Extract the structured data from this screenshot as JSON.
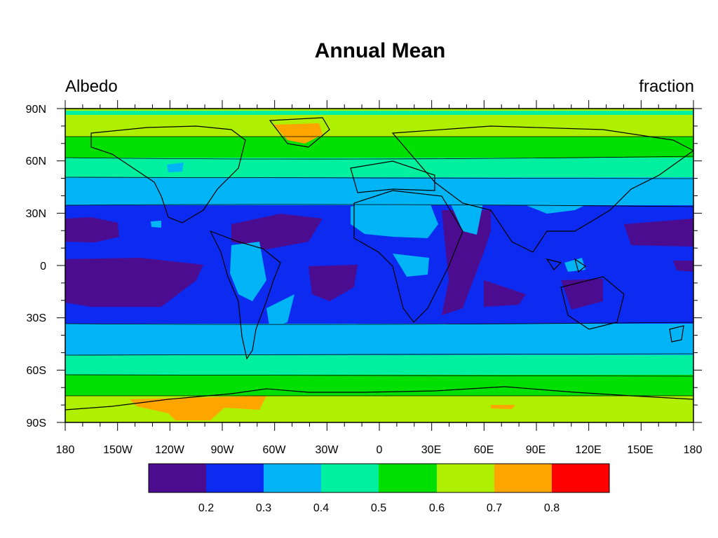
{
  "title": "Annual Mean",
  "left_string": "Albedo",
  "right_string": "fraction",
  "axes": {
    "x_ticks": [
      "180",
      "150W",
      "120W",
      "90W",
      "60W",
      "30W",
      "0",
      "30E",
      "60E",
      "90E",
      "120E",
      "150E",
      "180"
    ],
    "y_ticks": [
      "90N",
      "60N",
      "30N",
      "0",
      "30S",
      "60S",
      "90S"
    ]
  },
  "colorbar": {
    "labels": [
      "0.2",
      "0.3",
      "0.4",
      "0.5",
      "0.6",
      "0.7",
      "0.8"
    ],
    "colors": [
      "#4b0c8f",
      "#0d2bf0",
      "#00b4f5",
      "#00f0a0",
      "#00e000",
      "#aef000",
      "#ffa500",
      "#ff0000"
    ]
  },
  "map_colors": {
    "level_02": "#4b0c8f",
    "level_03": "#0d2bf0",
    "level_04": "#00b4f5",
    "level_05": "#00f0a0",
    "level_06": "#00e000",
    "level_07": "#aef000",
    "level_08": "#ffa500"
  }
}
